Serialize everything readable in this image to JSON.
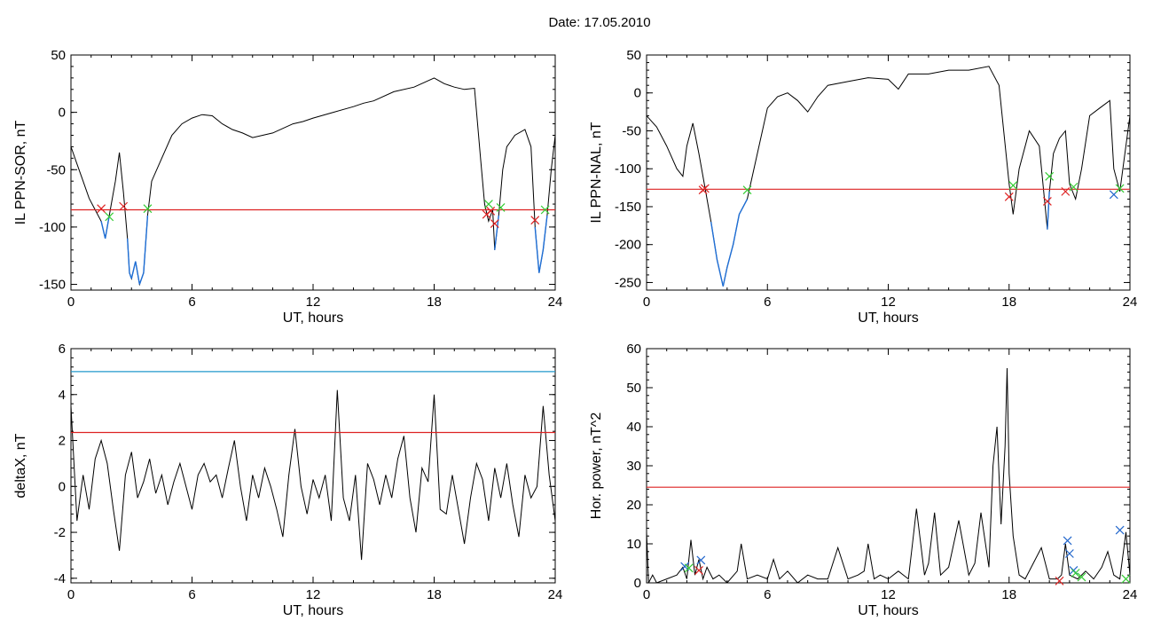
{
  "page": {
    "title": "Date:  17.05.2010"
  },
  "colors": {
    "signal": "#000000",
    "threshold": "#dd2222",
    "threshold2": "#2299cc",
    "below": "#1f6fd6",
    "marker_red": "#dd2222",
    "marker_green": "#33cc33",
    "marker_blue": "#2266cc"
  },
  "chart_data": [
    {
      "type": "line",
      "xlabel": "UT, hours",
      "ylabel": "IL PPN-SOR, nT",
      "xlim": [
        0,
        24
      ],
      "ylim": [
        -155,
        50
      ],
      "xticks": [
        0,
        6,
        12,
        18,
        24
      ],
      "yticks": [
        -150,
        -100,
        -50,
        0,
        50
      ],
      "threshold": -85,
      "x": [
        0,
        0.3,
        0.6,
        0.9,
        1.2,
        1.5,
        1.7,
        1.8,
        1.9,
        2.0,
        2.2,
        2.4,
        2.6,
        2.8,
        2.9,
        3.0,
        3.2,
        3.4,
        3.6,
        3.8,
        4.0,
        4.5,
        5.0,
        5.5,
        6.0,
        6.5,
        7.0,
        7.5,
        8.0,
        8.5,
        9.0,
        10.0,
        11.0,
        11.5,
        12.0,
        13.0,
        14.0,
        14.5,
        15.0,
        16.0,
        17.0,
        18.0,
        18.5,
        19.0,
        19.5,
        20.0,
        20.3,
        20.5,
        20.7,
        20.9,
        21.0,
        21.2,
        21.4,
        21.6,
        21.8,
        22.0,
        22.5,
        22.8,
        23.0,
        23.2,
        23.4,
        23.6,
        23.8,
        24.0
      ],
      "y": [
        -30,
        -45,
        -60,
        -75,
        -85,
        -95,
        -110,
        -100,
        -90,
        -80,
        -60,
        -35,
        -70,
        -110,
        -140,
        -145,
        -130,
        -150,
        -140,
        -90,
        -60,
        -40,
        -20,
        -10,
        -5,
        -2,
        -3,
        -10,
        -15,
        -18,
        -22,
        -18,
        -10,
        -8,
        -5,
        0,
        5,
        8,
        10,
        18,
        22,
        30,
        25,
        22,
        20,
        21,
        -40,
        -80,
        -95,
        -85,
        -120,
        -90,
        -50,
        -30,
        -25,
        -20,
        -15,
        -30,
        -100,
        -140,
        -120,
        -90,
        -50,
        -20
      ],
      "markers": [
        {
          "x": 1.5,
          "y": -84,
          "color": "red"
        },
        {
          "x": 2.6,
          "y": -82,
          "color": "red"
        },
        {
          "x": 1.9,
          "y": -91,
          "color": "green"
        },
        {
          "x": 3.8,
          "y": -84,
          "color": "green"
        },
        {
          "x": 20.6,
          "y": -89,
          "color": "red"
        },
        {
          "x": 20.8,
          "y": -86,
          "color": "red"
        },
        {
          "x": 21.0,
          "y": -97,
          "color": "red"
        },
        {
          "x": 20.7,
          "y": -80,
          "color": "green"
        },
        {
          "x": 21.3,
          "y": -83,
          "color": "green"
        },
        {
          "x": 23.0,
          "y": -94,
          "color": "red"
        },
        {
          "x": 23.5,
          "y": -85,
          "color": "green"
        }
      ]
    },
    {
      "type": "line",
      "xlabel": "UT, hours",
      "ylabel": "IL PPN-NAL, nT",
      "xlim": [
        0,
        24
      ],
      "ylim": [
        -260,
        50
      ],
      "xticks": [
        0,
        6,
        12,
        18,
        24
      ],
      "yticks": [
        -250,
        -200,
        -150,
        -100,
        -50,
        0,
        50
      ],
      "threshold": -127,
      "x": [
        0,
        0.5,
        1.0,
        1.5,
        1.8,
        2.0,
        2.3,
        2.6,
        2.9,
        3.2,
        3.5,
        3.8,
        4.0,
        4.3,
        4.6,
        5.0,
        5.5,
        6.0,
        6.5,
        7.0,
        7.5,
        8.0,
        8.5,
        9.0,
        10.0,
        11.0,
        12.0,
        12.5,
        13.0,
        14.0,
        15.0,
        16.0,
        17.0,
        17.5,
        18.0,
        18.2,
        18.5,
        19.0,
        19.5,
        19.9,
        20.0,
        20.2,
        20.5,
        20.8,
        21.0,
        21.3,
        21.6,
        22.0,
        22.5,
        23.0,
        23.2,
        23.5,
        24.0
      ],
      "y": [
        -30,
        -45,
        -70,
        -100,
        -110,
        -70,
        -40,
        -80,
        -125,
        -170,
        -220,
        -255,
        -230,
        -200,
        -160,
        -140,
        -80,
        -20,
        -5,
        0,
        -10,
        -25,
        -5,
        10,
        15,
        20,
        18,
        5,
        25,
        25,
        30,
        30,
        35,
        10,
        -120,
        -160,
        -100,
        -50,
        -70,
        -180,
        -130,
        -80,
        -60,
        -50,
        -120,
        -140,
        -100,
        -30,
        -20,
        -10,
        -100,
        -130,
        -30
      ],
      "markers": [
        {
          "x": 2.8,
          "y": -128,
          "color": "red"
        },
        {
          "x": 2.9,
          "y": -126,
          "color": "red"
        },
        {
          "x": 5.0,
          "y": -128,
          "color": "green"
        },
        {
          "x": 18.0,
          "y": -137,
          "color": "red"
        },
        {
          "x": 18.2,
          "y": -122,
          "color": "green"
        },
        {
          "x": 19.9,
          "y": -143,
          "color": "red"
        },
        {
          "x": 20.0,
          "y": -110,
          "color": "green"
        },
        {
          "x": 20.8,
          "y": -130,
          "color": "red"
        },
        {
          "x": 21.2,
          "y": -124,
          "color": "green"
        },
        {
          "x": 23.2,
          "y": -134,
          "color": "blue"
        },
        {
          "x": 23.5,
          "y": -126,
          "color": "green"
        }
      ]
    },
    {
      "type": "line",
      "xlabel": "UT, hours",
      "ylabel": "deltaX, nT",
      "xlim": [
        0,
        24
      ],
      "ylim": [
        -4.2,
        6
      ],
      "xticks": [
        0,
        6,
        12,
        18,
        24
      ],
      "yticks": [
        -4,
        -2,
        0,
        2,
        4,
        6
      ],
      "threshold": 2.35,
      "threshold2": 5.0,
      "x": [
        0,
        0.3,
        0.6,
        0.9,
        1.2,
        1.5,
        1.8,
        2.1,
        2.4,
        2.7,
        3.0,
        3.3,
        3.6,
        3.9,
        4.2,
        4.5,
        4.8,
        5.1,
        5.4,
        5.7,
        6.0,
        6.3,
        6.6,
        6.9,
        7.2,
        7.5,
        7.8,
        8.1,
        8.4,
        8.7,
        9.0,
        9.3,
        9.6,
        9.9,
        10.2,
        10.5,
        10.8,
        11.1,
        11.4,
        11.7,
        12.0,
        12.3,
        12.6,
        12.9,
        13.2,
        13.5,
        13.8,
        14.1,
        14.4,
        14.7,
        15.0,
        15.3,
        15.6,
        15.9,
        16.2,
        16.5,
        16.8,
        17.1,
        17.4,
        17.7,
        18.0,
        18.3,
        18.6,
        18.9,
        19.2,
        19.5,
        19.8,
        20.1,
        20.4,
        20.7,
        21.0,
        21.3,
        21.6,
        21.9,
        22.2,
        22.5,
        22.8,
        23.1,
        23.4,
        23.7,
        24.0
      ],
      "y": [
        3.5,
        -1.5,
        0.5,
        -1.0,
        1.2,
        2.0,
        1.0,
        -1.0,
        -2.8,
        0.5,
        1.5,
        -0.5,
        0.2,
        1.2,
        -0.3,
        0.5,
        -0.8,
        0.2,
        1.0,
        0.0,
        -1.0,
        0.5,
        1.0,
        0.2,
        0.5,
        -0.5,
        0.8,
        2.0,
        0.0,
        -1.5,
        0.5,
        -0.5,
        0.8,
        0.0,
        -1.0,
        -2.2,
        0.5,
        2.5,
        0.0,
        -1.2,
        0.3,
        -0.5,
        0.5,
        -1.5,
        4.2,
        -0.5,
        -1.5,
        0.5,
        -3.2,
        1.0,
        0.3,
        -0.8,
        0.5,
        -0.5,
        1.2,
        2.2,
        -0.5,
        -2.0,
        0.8,
        0.2,
        4.0,
        -1.0,
        -1.2,
        0.5,
        -1.0,
        -2.5,
        -0.5,
        1.0,
        0.3,
        -1.5,
        0.8,
        -0.5,
        1.0,
        -0.8,
        -2.2,
        0.5,
        -0.5,
        0.0,
        3.5,
        0.5,
        -1.5
      ]
    },
    {
      "type": "line",
      "xlabel": "UT, hours",
      "ylabel": "Hor. power, nT^2",
      "xlim": [
        0,
        24
      ],
      "ylim": [
        0,
        60
      ],
      "xticks": [
        0,
        6,
        12,
        18,
        24
      ],
      "yticks": [
        0,
        10,
        20,
        30,
        40,
        50,
        60
      ],
      "threshold": 24.5,
      "x": [
        0,
        0.1,
        0.3,
        0.5,
        1.0,
        1.5,
        1.8,
        2.0,
        2.2,
        2.4,
        2.6,
        2.8,
        3.0,
        3.3,
        3.6,
        4.0,
        4.5,
        4.7,
        5.0,
        5.5,
        6.0,
        6.3,
        6.6,
        7.0,
        7.5,
        8.0,
        8.5,
        9.0,
        9.5,
        10.0,
        10.5,
        10.8,
        11.0,
        11.3,
        11.6,
        12.0,
        12.5,
        13.0,
        13.2,
        13.4,
        13.8,
        14.0,
        14.3,
        14.6,
        15.0,
        15.5,
        16.0,
        16.3,
        16.6,
        17.0,
        17.2,
        17.4,
        17.6,
        17.8,
        17.9,
        18.0,
        18.2,
        18.5,
        18.8,
        19.2,
        19.6,
        20.0,
        20.4,
        20.6,
        20.8,
        21.0,
        21.4,
        21.8,
        22.2,
        22.6,
        22.9,
        23.2,
        23.5,
        23.8,
        24.0
      ],
      "y": [
        13,
        0,
        2,
        0,
        1,
        2,
        4,
        1,
        11,
        2,
        6,
        1,
        4,
        1,
        2,
        0,
        3,
        10,
        1,
        2,
        1,
        6,
        1,
        3,
        0,
        2,
        1,
        1,
        9,
        1,
        2,
        3,
        10,
        1,
        2,
        1,
        3,
        1,
        10,
        19,
        2,
        5,
        18,
        2,
        4,
        16,
        2,
        5,
        18,
        4,
        30,
        40,
        15,
        35,
        55,
        28,
        12,
        2,
        1,
        5,
        9,
        1,
        1,
        2,
        10,
        2,
        1,
        3,
        1,
        4,
        8,
        2,
        1,
        13,
        2
      ],
      "markers": [
        {
          "x": 1.9,
          "y": 4.2,
          "color": "blue"
        },
        {
          "x": 2.1,
          "y": 3.8,
          "color": "green"
        },
        {
          "x": 2.7,
          "y": 5.8,
          "color": "blue"
        },
        {
          "x": 2.6,
          "y": 3.2,
          "color": "red"
        },
        {
          "x": 20.5,
          "y": 0.5,
          "color": "red"
        },
        {
          "x": 20.9,
          "y": 10.8,
          "color": "blue"
        },
        {
          "x": 21.0,
          "y": 7.5,
          "color": "blue"
        },
        {
          "x": 21.2,
          "y": 3.2,
          "color": "blue"
        },
        {
          "x": 21.3,
          "y": 2.5,
          "color": "green"
        },
        {
          "x": 21.6,
          "y": 1.5,
          "color": "green"
        },
        {
          "x": 23.5,
          "y": 13.5,
          "color": "blue"
        },
        {
          "x": 23.8,
          "y": 1.0,
          "color": "green"
        }
      ]
    }
  ]
}
